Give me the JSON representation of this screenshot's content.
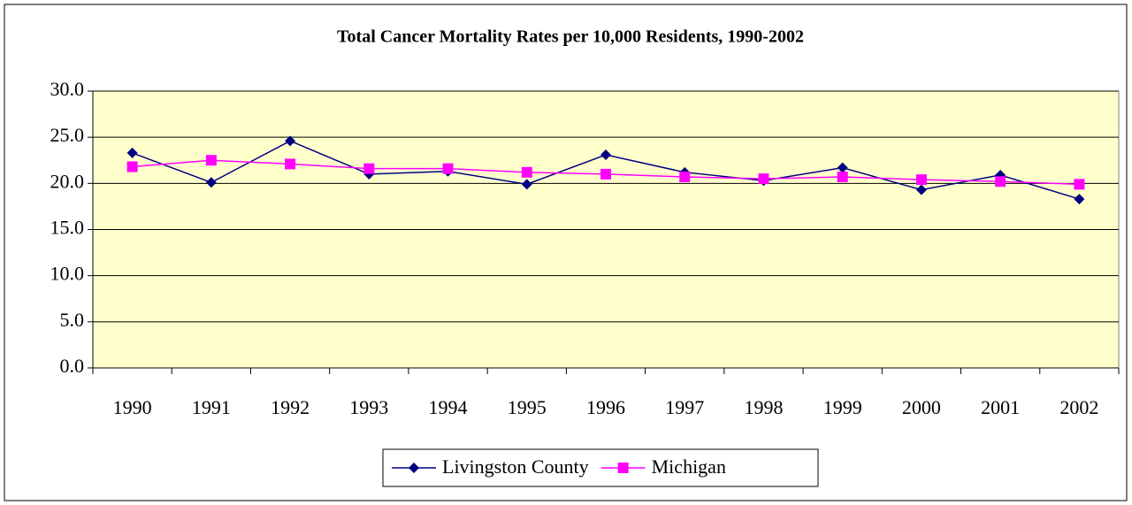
{
  "chart_data": {
    "type": "line",
    "title": "Total Cancer Mortality Rates per 10,000 Residents, 1990-2002",
    "categories": [
      "1990",
      "1991",
      "1992",
      "1993",
      "1994",
      "1995",
      "1996",
      "1997",
      "1998",
      "1999",
      "2000",
      "2001",
      "2002"
    ],
    "series": [
      {
        "name": "Livingston County",
        "color": "#000080",
        "marker": "diamond",
        "values": [
          23.3,
          20.1,
          24.6,
          21.0,
          21.3,
          19.9,
          23.1,
          21.2,
          20.3,
          21.7,
          19.3,
          20.9,
          18.3
        ]
      },
      {
        "name": "Michigan",
        "color": "#ff00ff",
        "marker": "square",
        "values": [
          21.8,
          22.5,
          22.1,
          21.6,
          21.6,
          21.2,
          21.0,
          20.7,
          20.5,
          20.7,
          20.4,
          20.2,
          19.9
        ]
      }
    ],
    "ylim": [
      0,
      30
    ],
    "yticks": [
      {
        "value": 0,
        "label": "0.0"
      },
      {
        "value": 5,
        "label": "5.0"
      },
      {
        "value": 10,
        "label": "10.0"
      },
      {
        "value": 15,
        "label": "15.0"
      },
      {
        "value": 20,
        "label": "20.0"
      },
      {
        "value": 25,
        "label": "25.0"
      },
      {
        "value": 30,
        "label": "30.0"
      }
    ],
    "grid": true,
    "legend": "bottom",
    "plot_background": "#ffffcc"
  }
}
